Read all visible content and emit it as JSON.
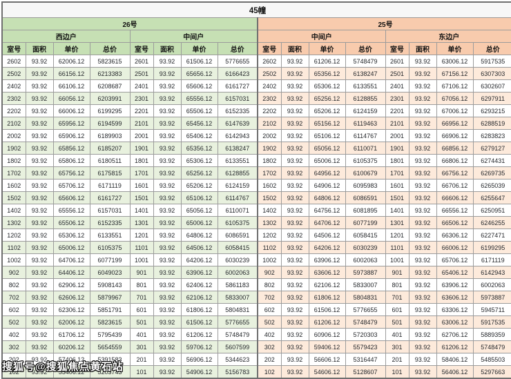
{
  "title": "45幢",
  "table": {
    "sections": [
      {
        "label": "26号",
        "units": [
          "西边户",
          "中间户"
        ]
      },
      {
        "label": "25号",
        "units": [
          "中间户",
          "东边户"
        ]
      }
    ],
    "column_headers": [
      "室号",
      "面积",
      "单价",
      "总价"
    ],
    "rows": [
      [
        "2602",
        "93.92",
        "62006.12",
        "5823615",
        "2601",
        "93.92",
        "61506.12",
        "5776655",
        "2602",
        "93.92",
        "61206.12",
        "5748479",
        "2601",
        "93.92",
        "63006.12",
        "5917535"
      ],
      [
        "2502",
        "93.92",
        "66156.12",
        "6213383",
        "2501",
        "93.92",
        "65656.12",
        "6166423",
        "2502",
        "93.92",
        "65356.12",
        "6138247",
        "2501",
        "93.92",
        "67156.12",
        "6307303"
      ],
      [
        "2402",
        "93.92",
        "66106.12",
        "6208687",
        "2401",
        "93.92",
        "65606.12",
        "6161727",
        "2402",
        "93.92",
        "65306.12",
        "6133551",
        "2401",
        "93.92",
        "67106.12",
        "6302607"
      ],
      [
        "2302",
        "93.92",
        "66056.12",
        "6203991",
        "2301",
        "93.92",
        "65556.12",
        "6157031",
        "2302",
        "93.92",
        "65256.12",
        "6128855",
        "2301",
        "93.92",
        "67056.12",
        "6297911"
      ],
      [
        "2202",
        "93.92",
        "66006.12",
        "6199295",
        "2201",
        "93.92",
        "65506.12",
        "6152335",
        "2202",
        "93.92",
        "65206.12",
        "6124159",
        "2201",
        "93.92",
        "67006.12",
        "6293215"
      ],
      [
        "2102",
        "93.92",
        "65956.12",
        "6194599",
        "2101",
        "93.92",
        "65456.12",
        "6147639",
        "2102",
        "93.92",
        "65156.12",
        "6119463",
        "2101",
        "93.92",
        "66956.12",
        "6288519"
      ],
      [
        "2002",
        "93.92",
        "65906.12",
        "6189903",
        "2001",
        "93.92",
        "65406.12",
        "6142943",
        "2002",
        "93.92",
        "65106.12",
        "6114767",
        "2001",
        "93.92",
        "66906.12",
        "6283823"
      ],
      [
        "1902",
        "93.92",
        "65856.12",
        "6185207",
        "1901",
        "93.92",
        "65356.12",
        "6138247",
        "1902",
        "93.92",
        "65056.12",
        "6110071",
        "1901",
        "93.92",
        "66856.12",
        "6279127"
      ],
      [
        "1802",
        "93.92",
        "65806.12",
        "6180511",
        "1801",
        "93.92",
        "65306.12",
        "6133551",
        "1802",
        "93.92",
        "65006.12",
        "6105375",
        "1801",
        "93.92",
        "66806.12",
        "6274431"
      ],
      [
        "1702",
        "93.92",
        "65756.12",
        "6175815",
        "1701",
        "93.92",
        "65256.12",
        "6128855",
        "1702",
        "93.92",
        "64956.12",
        "6100679",
        "1701",
        "93.92",
        "66756.12",
        "6269735"
      ],
      [
        "1602",
        "93.92",
        "65706.12",
        "6171119",
        "1601",
        "93.92",
        "65206.12",
        "6124159",
        "1602",
        "93.92",
        "64906.12",
        "6095983",
        "1601",
        "93.92",
        "66706.12",
        "6265039"
      ],
      [
        "1502",
        "93.92",
        "65606.12",
        "6161727",
        "1501",
        "93.92",
        "65106.12",
        "6114767",
        "1502",
        "93.92",
        "64806.12",
        "6086591",
        "1501",
        "93.92",
        "66606.12",
        "6255647"
      ],
      [
        "1402",
        "93.92",
        "65556.12",
        "6157031",
        "1401",
        "93.92",
        "65056.12",
        "6110071",
        "1402",
        "93.92",
        "64756.12",
        "6081895",
        "1401",
        "93.92",
        "66556.12",
        "6250951"
      ],
      [
        "1302",
        "93.92",
        "65506.12",
        "6152335",
        "1301",
        "93.92",
        "65006.12",
        "6105375",
        "1302",
        "93.92",
        "64706.12",
        "6077199",
        "1301",
        "93.92",
        "66506.12",
        "6246255"
      ],
      [
        "1202",
        "93.92",
        "65306.12",
        "6133551",
        "1201",
        "93.92",
        "64806.12",
        "6086591",
        "1202",
        "93.92",
        "64506.12",
        "6058415",
        "1201",
        "93.92",
        "66306.12",
        "6227471"
      ],
      [
        "1102",
        "93.92",
        "65006.12",
        "6105375",
        "1101",
        "93.92",
        "64506.12",
        "6058415",
        "1102",
        "93.92",
        "64206.12",
        "6030239",
        "1101",
        "93.92",
        "66006.12",
        "6199295"
      ],
      [
        "1002",
        "93.92",
        "64706.12",
        "6077199",
        "1001",
        "93.92",
        "64206.12",
        "6030239",
        "1002",
        "93.92",
        "63906.12",
        "6002063",
        "1001",
        "93.92",
        "65706.12",
        "6171119"
      ],
      [
        "902",
        "93.92",
        "64406.12",
        "6049023",
        "901",
        "93.92",
        "63906.12",
        "6002063",
        "902",
        "93.92",
        "63606.12",
        "5973887",
        "901",
        "93.92",
        "65406.12",
        "6142943"
      ],
      [
        "802",
        "93.92",
        "62906.12",
        "5908143",
        "801",
        "93.92",
        "62406.12",
        "5861183",
        "802",
        "93.92",
        "62106.12",
        "5833007",
        "801",
        "93.92",
        "63906.12",
        "6002063"
      ],
      [
        "702",
        "93.92",
        "62606.12",
        "5879967",
        "701",
        "93.92",
        "62106.12",
        "5833007",
        "702",
        "93.92",
        "61806.12",
        "5804831",
        "701",
        "93.92",
        "63606.12",
        "5973887"
      ],
      [
        "602",
        "93.92",
        "62306.12",
        "5851791",
        "601",
        "93.92",
        "61806.12",
        "5804831",
        "602",
        "93.92",
        "61506.12",
        "5776655",
        "601",
        "93.92",
        "63306.12",
        "5945711"
      ],
      [
        "502",
        "93.92",
        "62006.12",
        "5823615",
        "501",
        "93.92",
        "61506.12",
        "5776655",
        "502",
        "93.92",
        "61206.12",
        "5748479",
        "501",
        "93.92",
        "63006.12",
        "5917535"
      ],
      [
        "402",
        "93.92",
        "61706.12",
        "5795439",
        "401",
        "93.92",
        "61206.12",
        "5748479",
        "402",
        "93.92",
        "60906.12",
        "5720303",
        "401",
        "93.92",
        "62706.12",
        "5889359"
      ],
      [
        "302",
        "93.92",
        "60206.12",
        "5654559",
        "301",
        "93.92",
        "59706.12",
        "5607599",
        "302",
        "93.92",
        "59406.12",
        "5579423",
        "301",
        "93.92",
        "61206.12",
        "5748479"
      ],
      [
        "202",
        "93.92",
        "57406.12",
        "5391583",
        "201",
        "93.92",
        "56906.12",
        "5344623",
        "202",
        "93.92",
        "56606.12",
        "5316447",
        "201",
        "93.92",
        "58406.12",
        "5485503"
      ],
      [
        "102",
        "93.92",
        "55406.12",
        "5203743",
        "101",
        "93.92",
        "54906.12",
        "5156783",
        "102",
        "93.92",
        "54606.12",
        "5128607",
        "101",
        "93.92",
        "56406.12",
        "5297663"
      ]
    ]
  },
  "watermark": "搜狐号@搜狐焦点黄石站",
  "colors": {
    "green_header": "#c6e0b4",
    "green_row_alt": "#e8f1de",
    "orange_header": "#f8cbad",
    "orange_row_alt": "#fdeadb",
    "border": "#9b9b9b",
    "title_bg": "#f7f7f7"
  }
}
